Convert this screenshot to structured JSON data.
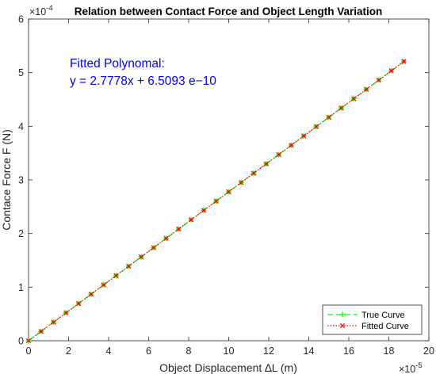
{
  "chart_data": {
    "type": "line",
    "title": "Relation between Contact Force and Object Length Variation",
    "xlabel": "Object Displacement ∆L (m)",
    "ylabel": "Contace Force F (N)",
    "x_exponent_label": "×10",
    "x_exponent_power": "-5",
    "y_exponent_label": "×10",
    "y_exponent_power": "-4",
    "x_scale": 1e-05,
    "y_scale": 0.0001,
    "xlim": [
      0,
      20
    ],
    "ylim": [
      0,
      6
    ],
    "xticks": [
      "0",
      "2",
      "4",
      "6",
      "8",
      "10",
      "12",
      "14",
      "16",
      "18",
      "20"
    ],
    "yticks": [
      "0",
      "1",
      "2",
      "3",
      "4",
      "5",
      "6"
    ],
    "grid": false,
    "legend_position": "bottom-right",
    "annotation": {
      "line1": "Fitted Polynomal:",
      "line2": "y = 2.7778x + 6.5093 e−10",
      "color": "#0000ff"
    },
    "series": [
      {
        "name": "True Curve",
        "color": "#00ff00",
        "line_style": "dashed",
        "marker": "+",
        "x": [
          0,
          0.625,
          1.25,
          1.875,
          2.5,
          3.125,
          3.75,
          4.375,
          5,
          5.625,
          6.25,
          6.875,
          7.5,
          8.125,
          8.75,
          9.375,
          10,
          10.625,
          11.25,
          11.875,
          12.5,
          13.125,
          13.75,
          14.375,
          15,
          15.625,
          16.25,
          16.875,
          17.5,
          18.125,
          18.75
        ],
        "y": [
          0,
          0.174,
          0.347,
          0.521,
          0.694,
          0.868,
          1.042,
          1.215,
          1.389,
          1.563,
          1.736,
          1.91,
          2.083,
          2.257,
          2.431,
          2.604,
          2.778,
          2.951,
          3.125,
          3.299,
          3.472,
          3.646,
          3.819,
          3.993,
          4.167,
          4.34,
          4.514,
          4.688,
          4.861,
          5.035,
          5.208
        ]
      },
      {
        "name": "Fitted Curve",
        "color": "#ff0000",
        "line_style": "dotted",
        "marker": "x",
        "x": [
          0,
          0.625,
          1.25,
          1.875,
          2.5,
          3.125,
          3.75,
          4.375,
          5,
          5.625,
          6.25,
          6.875,
          7.5,
          8.125,
          8.75,
          9.375,
          10,
          10.625,
          11.25,
          11.875,
          12.5,
          13.125,
          13.75,
          14.375,
          15,
          15.625,
          16.25,
          16.875,
          17.5,
          18.125,
          18.75
        ],
        "y": [
          0,
          0.174,
          0.347,
          0.521,
          0.694,
          0.868,
          1.042,
          1.215,
          1.389,
          1.563,
          1.736,
          1.91,
          2.083,
          2.257,
          2.431,
          2.604,
          2.778,
          2.951,
          3.125,
          3.299,
          3.472,
          3.646,
          3.819,
          3.993,
          4.167,
          4.34,
          4.514,
          4.688,
          4.861,
          5.035,
          5.208
        ]
      }
    ]
  }
}
